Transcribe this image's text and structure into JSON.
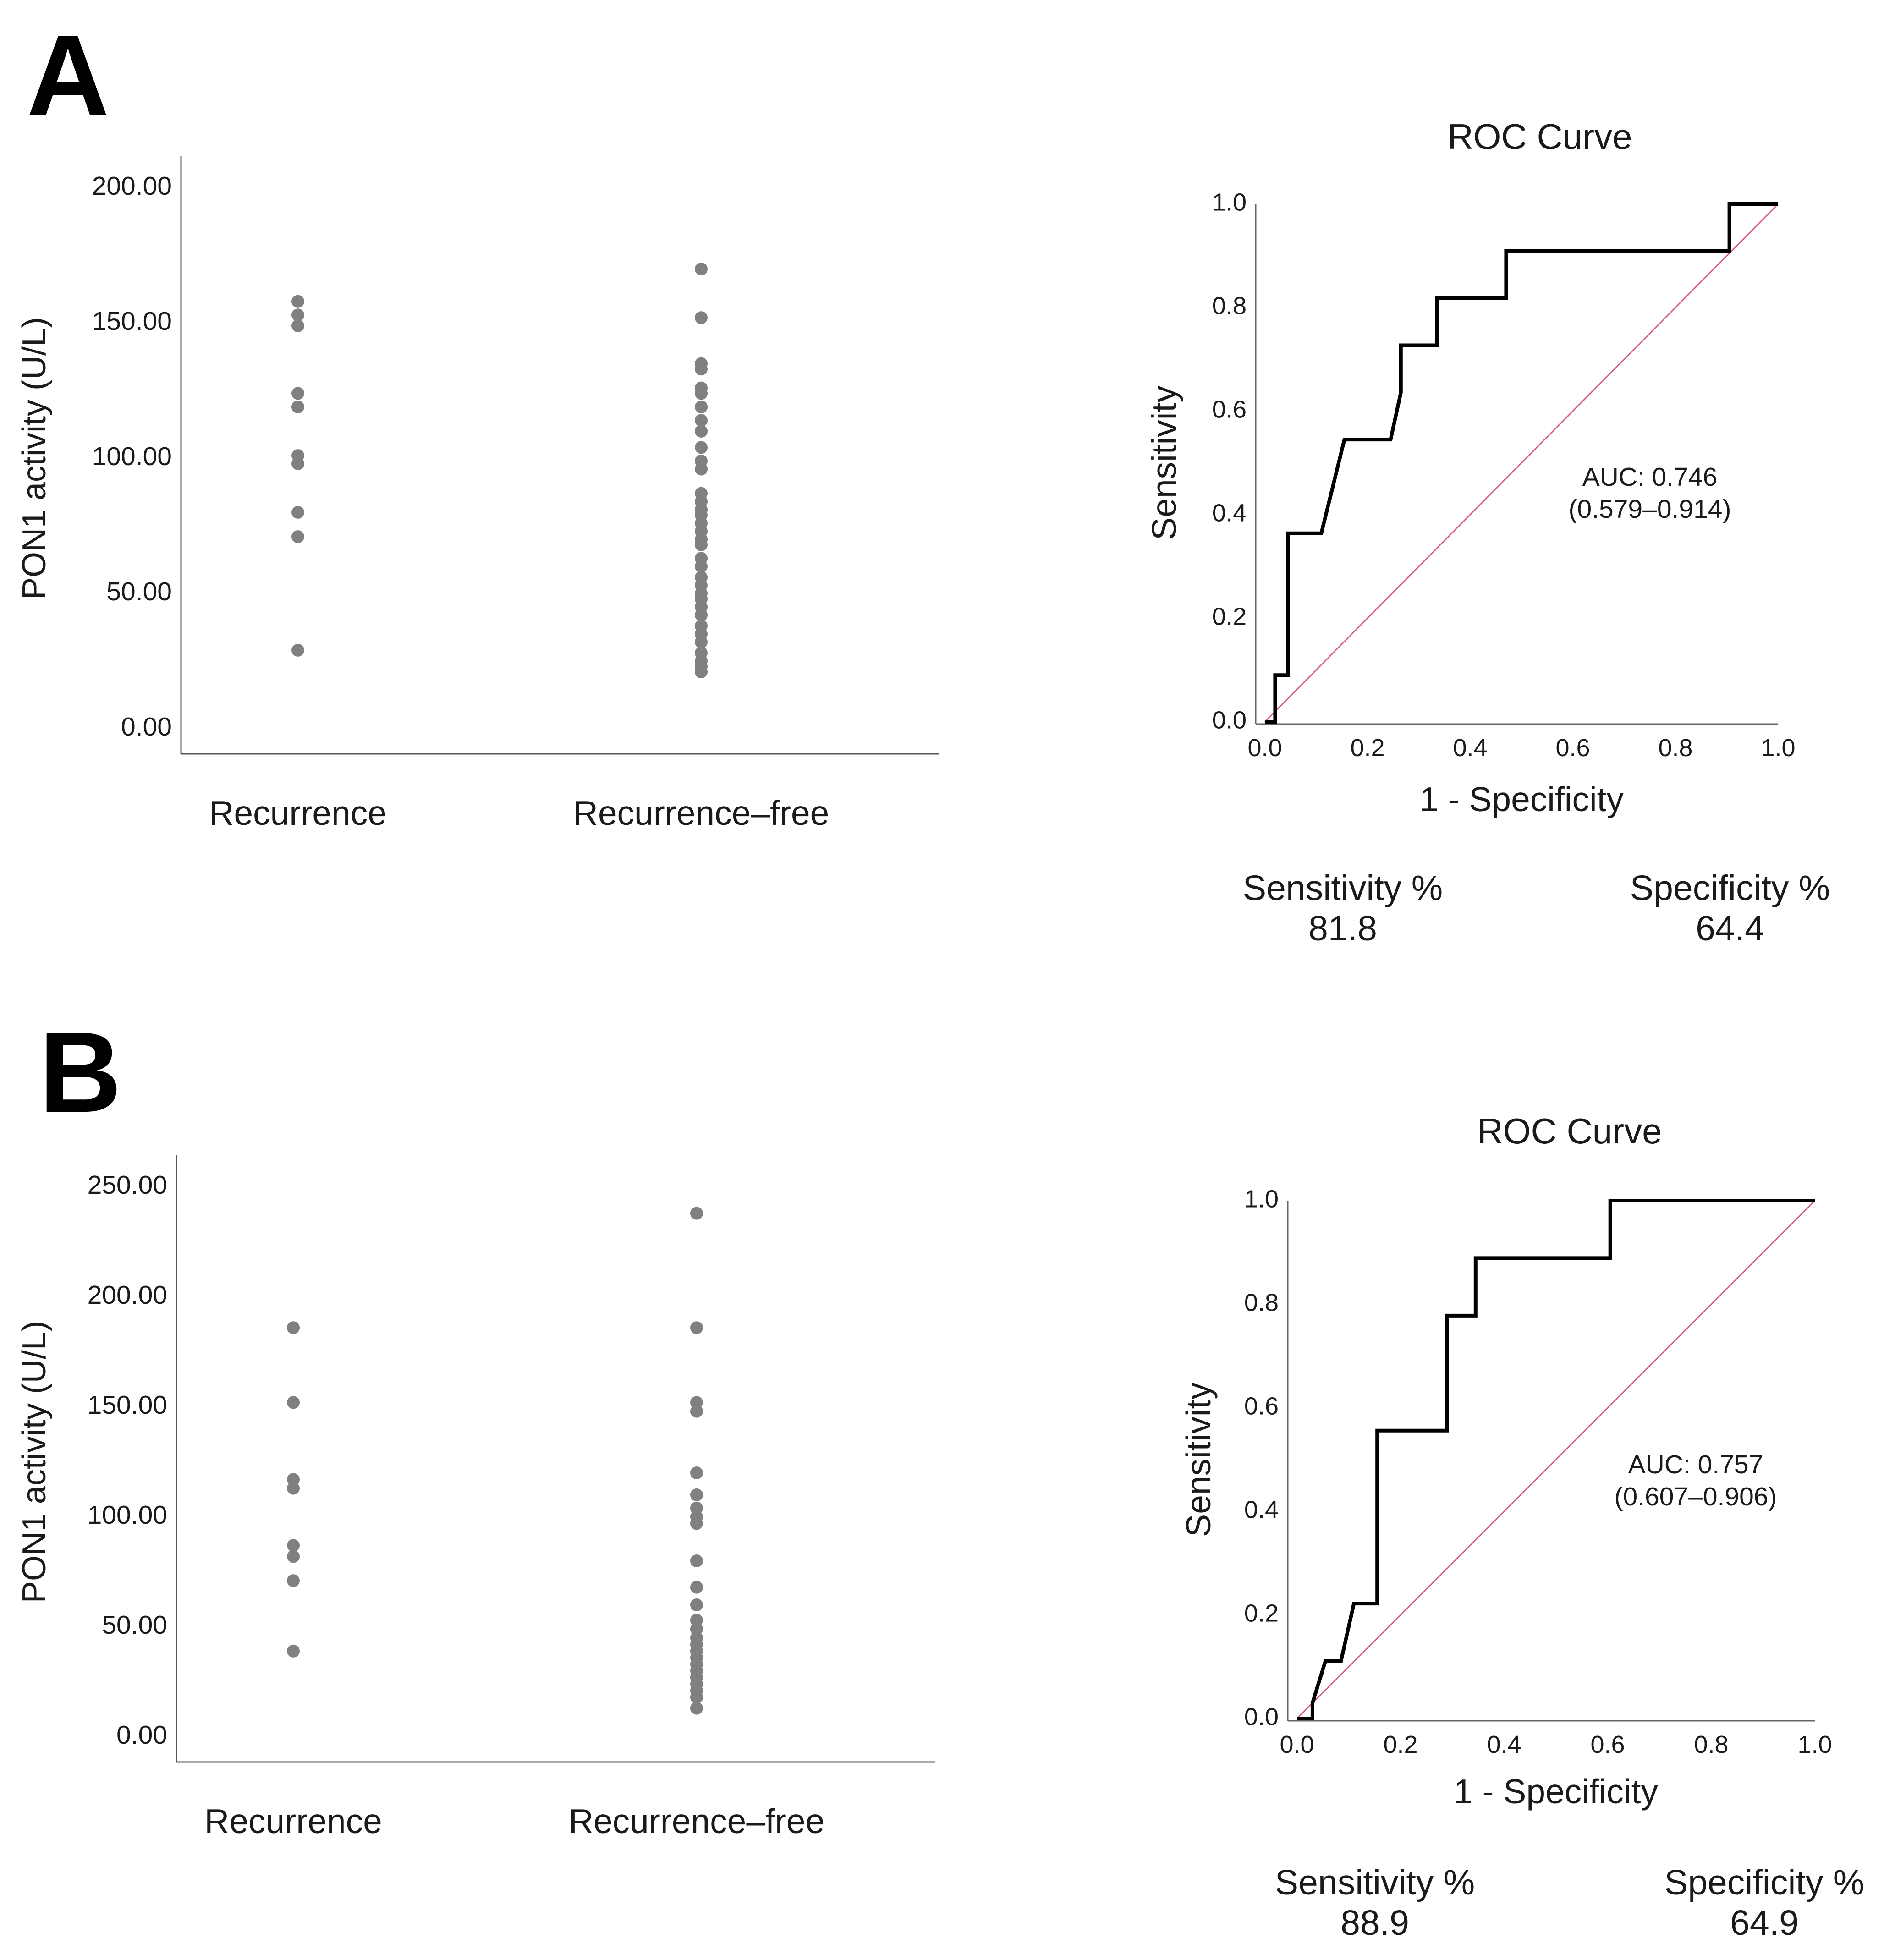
{
  "figure": {
    "panels": [
      {
        "letter": "A",
        "scatter": {
          "ylabel": "PON1 activity (U/L)",
          "ylim": [
            0,
            200
          ],
          "yticks": [
            "0.00",
            "50.00",
            "100.00",
            "150.00",
            "200.00"
          ],
          "ytick_values": [
            0,
            50,
            100,
            150,
            200
          ],
          "groups": [
            "Recurrence",
            "Recurrence–free"
          ],
          "point_color": "#808080",
          "points": [
            [
              158,
              153,
              149,
              124,
              119,
              101,
              98,
              80,
              71,
              29
            ],
            [
              170,
              152,
              135,
              133,
              126,
              124,
              119,
              114,
              110,
              104,
              99,
              96,
              87,
              84,
              81,
              79,
              76,
              73,
              70,
              68,
              63,
              60,
              56,
              53,
              50,
              48,
              45,
              42,
              38,
              35,
              32,
              28,
              25,
              23,
              21
            ]
          ]
        },
        "roc": {
          "title": "ROC Curve",
          "xlabel": "1 - Specificity",
          "ylabel": "Sensitivity",
          "xticks": [
            "0.0",
            "0.2",
            "0.4",
            "0.6",
            "0.8",
            "1.0"
          ],
          "yticks": [
            "0.0",
            "0.2",
            "0.4",
            "0.6",
            "0.8",
            "1.0"
          ],
          "tick_values": [
            0,
            0.2,
            0.4,
            0.6,
            0.8,
            1.0
          ],
          "curve_color": "#000000",
          "reference_color": "#d9607c",
          "curve": [
            [
              0,
              0
            ],
            [
              0.02,
              0
            ],
            [
              0.02,
              0.09
            ],
            [
              0.045,
              0.09
            ],
            [
              0.045,
              0.364
            ],
            [
              0.11,
              0.364
            ],
            [
              0.155,
              0.545
            ],
            [
              0.245,
              0.545
            ],
            [
              0.265,
              0.636
            ],
            [
              0.265,
              0.727
            ],
            [
              0.335,
              0.727
            ],
            [
              0.335,
              0.818
            ],
            [
              0.47,
              0.818
            ],
            [
              0.47,
              0.909
            ],
            [
              0.905,
              0.909
            ],
            [
              0.905,
              1.0
            ],
            [
              1.0,
              1.0
            ]
          ],
          "auc_label": "AUC: 0.746",
          "ci_label": "(0.579–0.914)"
        },
        "stats": {
          "sensitivity_label": "Sensitivity %",
          "sensitivity_value": "81.8",
          "specificity_label": "Specificity %",
          "specificity_value": "64.4"
        }
      },
      {
        "letter": "B",
        "scatter": {
          "ylabel": "PON1 activity (U/L)",
          "ylim": [
            0,
            250
          ],
          "yticks": [
            "0.00",
            "50.00",
            "100.00",
            "150.00",
            "200.00",
            "250.00"
          ],
          "ytick_values": [
            0,
            50,
            100,
            150,
            200,
            250
          ],
          "groups": [
            "Recurrence",
            "Recurrence–free"
          ],
          "point_color": "#808080",
          "points": [
            [
              186,
              152,
              117,
              113,
              87,
              82,
              71,
              39
            ],
            [
              238,
              186,
              152,
              148,
              120,
              110,
              104,
              100,
              97,
              80,
              68,
              60,
              53,
              49,
              45,
              42,
              39,
              36,
              33,
              30,
              27,
              24,
              21,
              18,
              13
            ]
          ]
        },
        "roc": {
          "title": "ROC Curve",
          "xlabel": "1 - Specificity",
          "ylabel": "Sensitivity",
          "xticks": [
            "0.0",
            "0.2",
            "0.4",
            "0.6",
            "0.8",
            "1.0"
          ],
          "yticks": [
            "0.0",
            "0.2",
            "0.4",
            "0.6",
            "0.8",
            "1.0"
          ],
          "tick_values": [
            0,
            0.2,
            0.4,
            0.6,
            0.8,
            1.0
          ],
          "curve_color": "#000000",
          "reference_color": "#d9607c",
          "curve": [
            [
              0,
              0
            ],
            [
              0.03,
              0
            ],
            [
              0.03,
              0.03
            ],
            [
              0.055,
              0.111
            ],
            [
              0.085,
              0.111
            ],
            [
              0.11,
              0.222
            ],
            [
              0.155,
              0.222
            ],
            [
              0.155,
              0.556
            ],
            [
              0.29,
              0.556
            ],
            [
              0.29,
              0.778
            ],
            [
              0.345,
              0.778
            ],
            [
              0.345,
              0.889
            ],
            [
              0.605,
              0.889
            ],
            [
              0.605,
              1.0
            ],
            [
              1.0,
              1.0
            ]
          ],
          "auc_label": "AUC: 0.757",
          "ci_label": "(0.607–0.906)"
        },
        "stats": {
          "sensitivity_label": "Sensitivity %",
          "sensitivity_value": "88.9",
          "specificity_label": "Specificity %",
          "specificity_value": "64.9"
        }
      }
    ]
  }
}
